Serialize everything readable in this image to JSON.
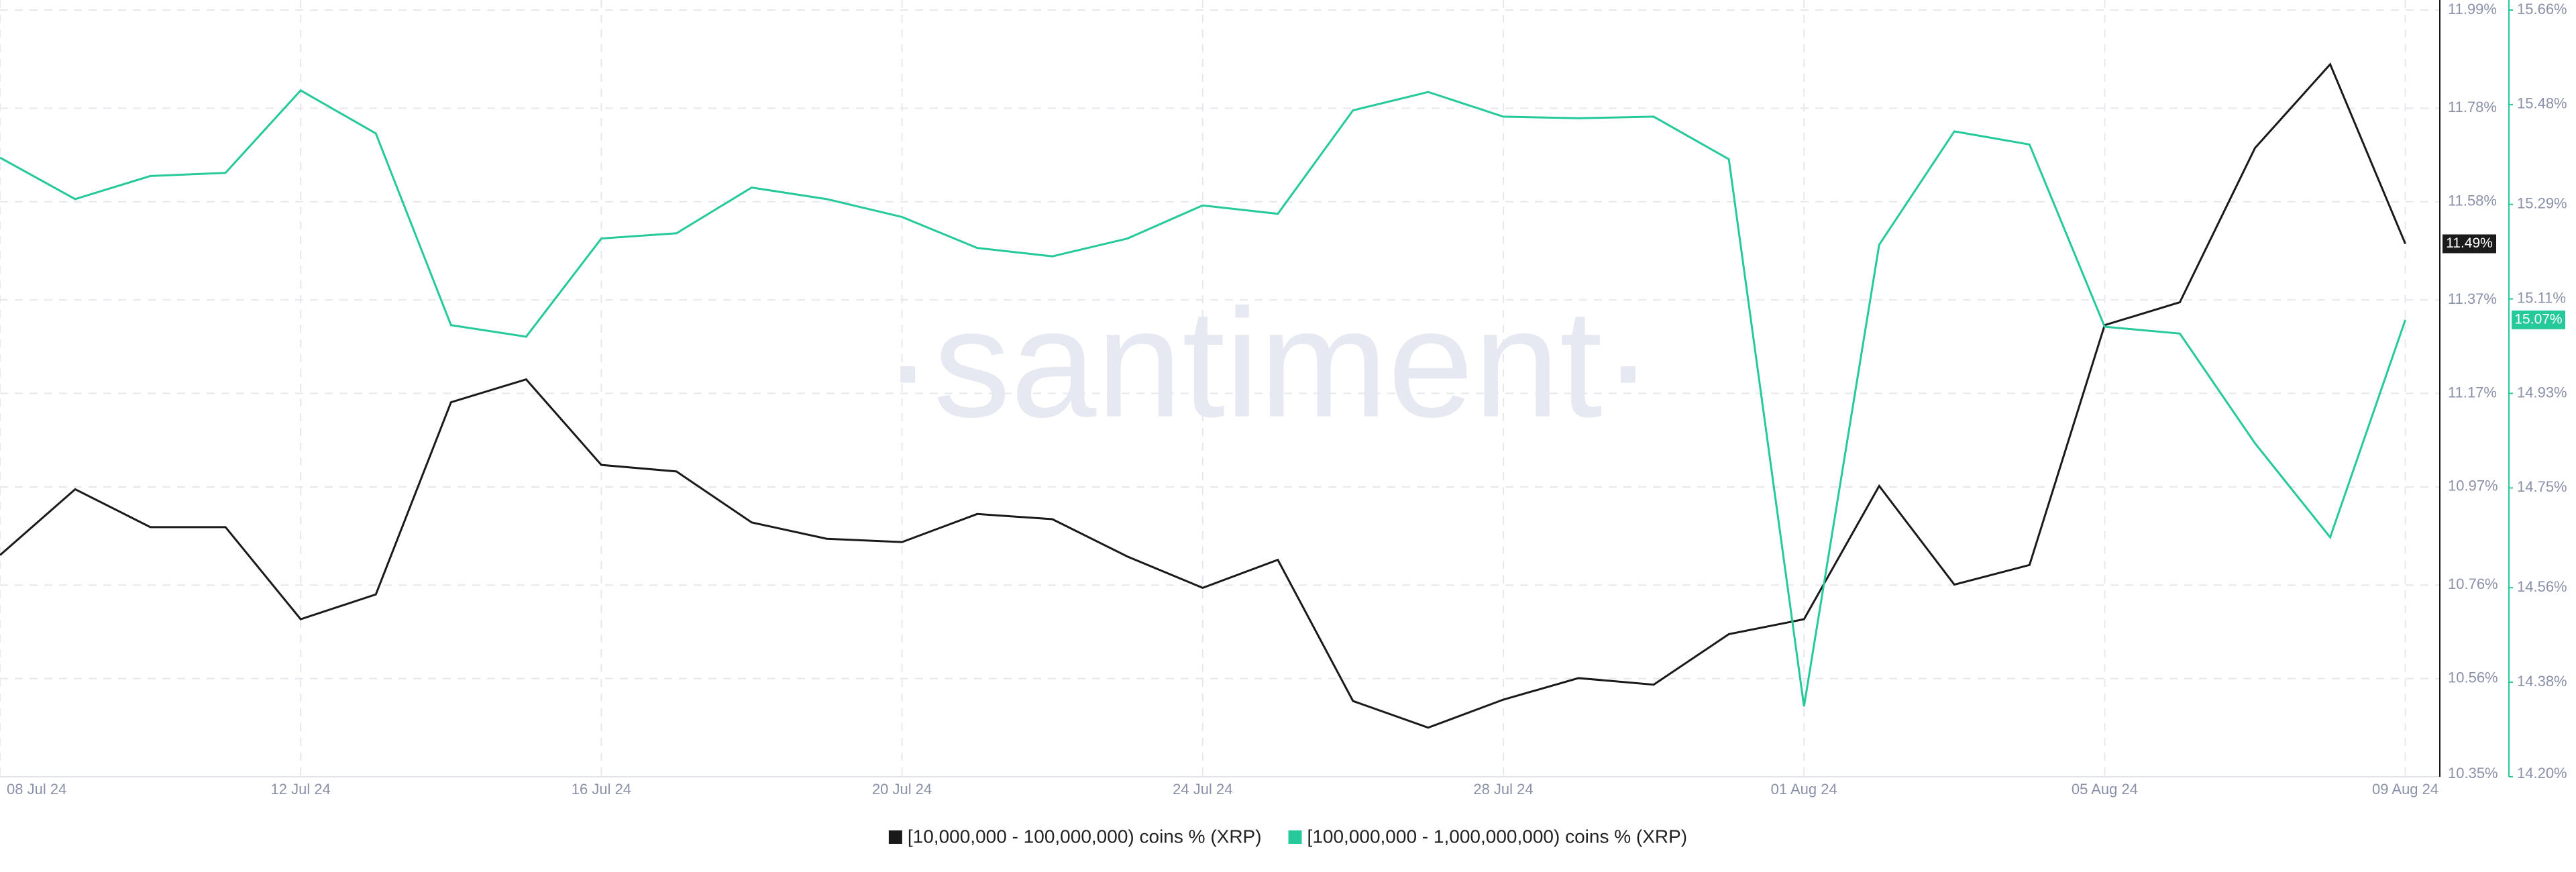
{
  "chart_data": {
    "type": "line",
    "watermark": "·santiment·",
    "categories": [
      "08 Jul 24",
      null,
      null,
      null,
      "12 Jul 24",
      null,
      null,
      null,
      "16 Jul 24",
      null,
      null,
      null,
      "20 Jul 24",
      null,
      null,
      null,
      "24 Jul 24",
      null,
      null,
      null,
      "28 Jul 24",
      null,
      null,
      null,
      "01 Aug 24",
      null,
      null,
      null,
      "05 Aug 24",
      null,
      null,
      null,
      "09 Aug 24"
    ],
    "series": [
      {
        "name": "[10,000,000 - 100,000,000) coins % (XRP)",
        "color": "#1a1a1a",
        "axis": "y",
        "values": [
          10.824,
          10.965,
          10.884,
          10.884,
          10.687,
          10.74,
          11.151,
          11.2,
          11.017,
          11.003,
          10.894,
          10.859,
          10.852,
          10.912,
          10.901,
          10.821,
          10.754,
          10.814,
          10.512,
          10.455,
          10.515,
          10.561,
          10.547,
          10.655,
          10.687,
          10.972,
          10.761,
          10.803,
          11.316,
          11.365,
          11.695,
          11.874,
          11.49
        ],
        "value_labels": [
          null,
          null,
          null,
          null,
          null,
          null,
          null,
          null,
          null,
          null,
          null,
          null,
          null,
          null,
          null,
          null,
          null,
          null,
          null,
          null,
          null,
          null,
          null,
          null,
          null,
          null,
          null,
          null,
          null,
          null,
          null,
          null,
          "11.49%"
        ]
      },
      {
        "name": "[100,000,000 - 1,000,000,000) coins % (XRP)",
        "color": "#26c99a",
        "axis": "y2",
        "values": [
          15.379,
          15.3,
          15.344,
          15.35,
          15.507,
          15.425,
          15.06,
          15.038,
          15.225,
          15.235,
          15.322,
          15.3,
          15.266,
          15.207,
          15.191,
          15.225,
          15.288,
          15.272,
          15.469,
          15.504,
          15.457,
          15.454,
          15.457,
          15.376,
          14.334,
          15.213,
          15.429,
          15.404,
          15.057,
          15.044,
          14.835,
          14.656,
          15.07
        ],
        "value_labels": [
          null,
          null,
          null,
          null,
          null,
          null,
          null,
          null,
          null,
          null,
          null,
          null,
          null,
          null,
          null,
          null,
          null,
          null,
          null,
          null,
          null,
          null,
          null,
          null,
          null,
          null,
          null,
          null,
          null,
          null,
          null,
          null,
          "15.07%"
        ]
      }
    ],
    "ylim": [
      10.35,
      11.99
    ],
    "yticks": [
      {
        "value": 10.35,
        "label": "10.35%"
      },
      {
        "value": 10.56,
        "label": "10.56%"
      },
      {
        "value": 10.76,
        "label": "10.76%"
      },
      {
        "value": 10.97,
        "label": "10.97%"
      },
      {
        "value": 11.17,
        "label": "11.17%"
      },
      {
        "value": 11.37,
        "label": "11.37%"
      },
      {
        "value": 11.58,
        "label": "11.58%"
      },
      {
        "value": 11.78,
        "label": "11.78%"
      },
      {
        "value": 11.99,
        "label": "11.99%"
      }
    ],
    "y2lim": [
      14.2,
      15.66
    ],
    "y2ticks": [
      {
        "value": 14.2,
        "label": "14.20%"
      },
      {
        "value": 14.38,
        "label": "14.38%"
      },
      {
        "value": 14.56,
        "label": "14.56%"
      },
      {
        "value": 14.75,
        "label": "14.75%"
      },
      {
        "value": 14.93,
        "label": "14.93%"
      },
      {
        "value": 15.11,
        "label": "15.11%"
      },
      {
        "value": 15.29,
        "label": "15.29%"
      },
      {
        "value": 15.48,
        "label": "15.48%"
      },
      {
        "value": 15.66,
        "label": "15.66%"
      }
    ],
    "grid": true
  }
}
